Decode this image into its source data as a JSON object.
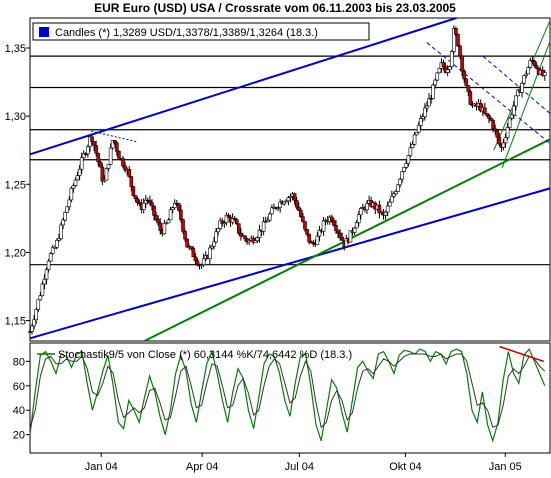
{
  "colors": {
    "background": "#ffffff",
    "frame": "#000000",
    "candle_up": "#ffffff",
    "candle_down": "#cc0000",
    "trend_blue": "#0000cc",
    "trend_green": "#008000",
    "resistance_red": "#cc0000",
    "stoch_k": "#0a7a0a",
    "stoch_d": "#333333",
    "legend_square": "#0000cc",
    "legend_line": "#008000"
  },
  "chart_data": [
    {
      "type": "candlestick",
      "title": "EUR Euro (USD) USA / Crossrate vom 06.11.2003 bis 23.03.2005",
      "legend": "Candles (*) 1,3289 USD/1,3378/1,3389/1,3264 (18.3.)",
      "y_ticks": [
        "1,15",
        "1,20",
        "1,25",
        "1,30",
        "1,35"
      ],
      "y_tick_values": [
        1.15,
        1.2,
        1.25,
        1.3,
        1.35
      ],
      "ylim": [
        1.135,
        1.372
      ],
      "x_ticks": [
        "Jan 04",
        "Apr 04",
        "Jul 04",
        "Okt 04",
        "Jan 05"
      ],
      "x_tick_positions": [
        0.137,
        0.331,
        0.518,
        0.722,
        0.914
      ],
      "horizontal_lines": [
        1.344,
        1.321,
        1.29,
        1.268,
        1.191
      ],
      "close_path": [
        [
          0.0,
          1.142
        ],
        [
          0.02,
          1.17
        ],
        [
          0.035,
          1.195
        ],
        [
          0.05,
          1.205
        ],
        [
          0.065,
          1.225
        ],
        [
          0.08,
          1.245
        ],
        [
          0.095,
          1.262
        ],
        [
          0.11,
          1.278
        ],
        [
          0.118,
          1.286
        ],
        [
          0.126,
          1.275
        ],
        [
          0.134,
          1.262
        ],
        [
          0.142,
          1.25
        ],
        [
          0.15,
          1.265
        ],
        [
          0.16,
          1.284
        ],
        [
          0.172,
          1.27
        ],
        [
          0.185,
          1.262
        ],
        [
          0.198,
          1.245
        ],
        [
          0.212,
          1.232
        ],
        [
          0.225,
          1.24
        ],
        [
          0.238,
          1.228
        ],
        [
          0.252,
          1.215
        ],
        [
          0.265,
          1.222
        ],
        [
          0.278,
          1.238
        ],
        [
          0.29,
          1.225
        ],
        [
          0.302,
          1.205
        ],
        [
          0.315,
          1.198
        ],
        [
          0.328,
          1.19
        ],
        [
          0.34,
          1.196
        ],
        [
          0.352,
          1.208
        ],
        [
          0.365,
          1.22
        ],
        [
          0.378,
          1.226
        ],
        [
          0.392,
          1.223
        ],
        [
          0.405,
          1.213
        ],
        [
          0.42,
          1.208
        ],
        [
          0.435,
          1.212
        ],
        [
          0.45,
          1.22
        ],
        [
          0.465,
          1.23
        ],
        [
          0.478,
          1.236
        ],
        [
          0.492,
          1.24
        ],
        [
          0.505,
          1.242
        ],
        [
          0.518,
          1.23
        ],
        [
          0.53,
          1.214
        ],
        [
          0.542,
          1.205
        ],
        [
          0.555,
          1.212
        ],
        [
          0.568,
          1.224
        ],
        [
          0.58,
          1.226
        ],
        [
          0.592,
          1.216
        ],
        [
          0.605,
          1.206
        ],
        [
          0.618,
          1.214
        ],
        [
          0.63,
          1.226
        ],
        [
          0.642,
          1.233
        ],
        [
          0.655,
          1.236
        ],
        [
          0.668,
          1.232
        ],
        [
          0.68,
          1.226
        ],
        [
          0.692,
          1.236
        ],
        [
          0.705,
          1.248
        ],
        [
          0.718,
          1.263
        ],
        [
          0.73,
          1.273
        ],
        [
          0.745,
          1.29
        ],
        [
          0.76,
          1.305
        ],
        [
          0.772,
          1.316
        ],
        [
          0.782,
          1.328
        ],
        [
          0.792,
          1.338
        ],
        [
          0.8,
          1.334
        ],
        [
          0.808,
          1.34
        ],
        [
          0.815,
          1.362
        ],
        [
          0.822,
          1.356
        ],
        [
          0.83,
          1.338
        ],
        [
          0.84,
          1.318
        ],
        [
          0.852,
          1.306
        ],
        [
          0.864,
          1.308
        ],
        [
          0.876,
          1.3
        ],
        [
          0.888,
          1.296
        ],
        [
          0.898,
          1.284
        ],
        [
          0.906,
          1.276
        ],
        [
          0.914,
          1.286
        ],
        [
          0.924,
          1.3
        ],
        [
          0.934,
          1.312
        ],
        [
          0.944,
          1.322
        ],
        [
          0.954,
          1.332
        ],
        [
          0.964,
          1.341
        ],
        [
          0.972,
          1.338
        ],
        [
          0.982,
          1.331
        ],
        [
          0.99,
          1.329
        ]
      ]
    },
    {
      "type": "line",
      "legend": "Stochastik9/5 von Close (*) 60,3144 %K/74,6442 %D (18.3.)",
      "y_ticks": [
        "20",
        "40",
        "60",
        "80"
      ],
      "y_tick_values": [
        20,
        40,
        60,
        80
      ],
      "ylim": [
        5,
        95
      ],
      "x_ticks": [
        "Jan 04",
        "Apr 04",
        "Jul 04",
        "Okt 04",
        "Jan 05"
      ],
      "series": [
        {
          "values_x": [
            0.0,
            0.01,
            0.02,
            0.03,
            0.04,
            0.05,
            0.06,
            0.07,
            0.08,
            0.09,
            0.1,
            0.11,
            0.12,
            0.13,
            0.14,
            0.15,
            0.16,
            0.17,
            0.18,
            0.19,
            0.2,
            0.21,
            0.22,
            0.23,
            0.24,
            0.25,
            0.26,
            0.27,
            0.28,
            0.29,
            0.3,
            0.31,
            0.32,
            0.33,
            0.34,
            0.35,
            0.36,
            0.37,
            0.38,
            0.39,
            0.4,
            0.41,
            0.42,
            0.43,
            0.44,
            0.45,
            0.46,
            0.47,
            0.48,
            0.49,
            0.5,
            0.51,
            0.52,
            0.53,
            0.54,
            0.55,
            0.56,
            0.57,
            0.58,
            0.59,
            0.6,
            0.61,
            0.62,
            0.63,
            0.64,
            0.65,
            0.66,
            0.67,
            0.68,
            0.69,
            0.7,
            0.71,
            0.72,
            0.73,
            0.74,
            0.75,
            0.76,
            0.77,
            0.78,
            0.79,
            0.8,
            0.81,
            0.82,
            0.83,
            0.84,
            0.85,
            0.86,
            0.87,
            0.88,
            0.89,
            0.9,
            0.91,
            0.92,
            0.93,
            0.94,
            0.95,
            0.96,
            0.97,
            0.98,
            0.99
          ],
          "values_y": [
            20,
            55,
            85,
            88,
            80,
            70,
            86,
            84,
            75,
            86,
            88,
            62,
            40,
            55,
            72,
            85,
            60,
            30,
            25,
            48,
            40,
            30,
            50,
            68,
            55,
            35,
            20,
            40,
            70,
            85,
            72,
            45,
            30,
            55,
            78,
            88,
            70,
            48,
            30,
            55,
            74,
            66,
            40,
            25,
            50,
            78,
            86,
            84,
            70,
            48,
            35,
            62,
            84,
            86,
            60,
            28,
            15,
            40,
            65,
            58,
            38,
            22,
            48,
            75,
            80,
            72,
            66,
            86,
            88,
            80,
            70,
            85,
            89,
            88,
            86,
            90,
            88,
            80,
            88,
            86,
            78,
            88,
            90,
            88,
            70,
            40,
            30,
            55,
            28,
            15,
            30,
            65,
            88,
            70,
            62,
            85,
            90,
            80,
            70,
            60
          ]
        },
        {
          "values_x": [
            0.0,
            0.01,
            0.02,
            0.03,
            0.04,
            0.05,
            0.06,
            0.07,
            0.08,
            0.09,
            0.1,
            0.11,
            0.12,
            0.13,
            0.14,
            0.15,
            0.16,
            0.17,
            0.18,
            0.19,
            0.2,
            0.21,
            0.22,
            0.23,
            0.24,
            0.25,
            0.26,
            0.27,
            0.28,
            0.29,
            0.3,
            0.31,
            0.32,
            0.33,
            0.34,
            0.35,
            0.36,
            0.37,
            0.38,
            0.39,
            0.4,
            0.41,
            0.42,
            0.43,
            0.44,
            0.45,
            0.46,
            0.47,
            0.48,
            0.49,
            0.5,
            0.51,
            0.52,
            0.53,
            0.54,
            0.55,
            0.56,
            0.57,
            0.58,
            0.59,
            0.6,
            0.61,
            0.62,
            0.63,
            0.64,
            0.65,
            0.66,
            0.67,
            0.68,
            0.69,
            0.7,
            0.71,
            0.72,
            0.73,
            0.74,
            0.75,
            0.76,
            0.77,
            0.78,
            0.79,
            0.8,
            0.81,
            0.82,
            0.83,
            0.84,
            0.85,
            0.86,
            0.87,
            0.88,
            0.89,
            0.9,
            0.91,
            0.92,
            0.93,
            0.94,
            0.95,
            0.96,
            0.97,
            0.98,
            0.99
          ],
          "values_y": [
            25,
            40,
            68,
            82,
            84,
            78,
            78,
            82,
            80,
            80,
            84,
            74,
            55,
            52,
            62,
            76,
            70,
            48,
            34,
            38,
            42,
            38,
            42,
            56,
            58,
            46,
            32,
            34,
            52,
            72,
            76,
            60,
            42,
            44,
            62,
            78,
            76,
            60,
            42,
            44,
            60,
            66,
            54,
            36,
            40,
            60,
            76,
            82,
            78,
            62,
            46,
            50,
            68,
            80,
            72,
            46,
            26,
            30,
            48,
            56,
            48,
            32,
            38,
            58,
            72,
            74,
            70,
            76,
            82,
            80,
            76,
            80,
            84,
            86,
            86,
            86,
            86,
            84,
            84,
            86,
            82,
            84,
            86,
            86,
            80,
            62,
            44,
            46,
            40,
            26,
            28,
            44,
            68,
            74,
            70,
            76,
            84,
            82,
            76,
            72
          ]
        }
      ]
    }
  ],
  "annotations": {
    "upper_blue_line": [
      [
        0.0,
        1.272
      ],
      [
        0.82,
        1.372
      ]
    ],
    "lower_blue_line": [
      [
        0.0,
        1.137
      ],
      [
        1.0,
        1.247
      ]
    ],
    "upper_blue_dots": [
      [
        0.118,
        1.289
      ],
      [
        0.208,
        1.281
      ]
    ],
    "green_line": [
      [
        0.22,
        1.135
      ],
      [
        1.0,
        1.283
      ]
    ],
    "green_channel_a": [
      [
        0.892,
        1.275
      ],
      [
        1.0,
        1.37
      ]
    ],
    "green_channel_b": [
      [
        0.908,
        1.262
      ],
      [
        1.0,
        1.355
      ]
    ],
    "dashed_blue_a": [
      [
        0.763,
        1.354
      ],
      [
        1.0,
        1.28
      ]
    ],
    "dashed_blue_b": [
      [
        0.871,
        1.344
      ],
      [
        1.0,
        1.302
      ]
    ],
    "stoch_red_line": [
      [
        0.903,
        92
      ],
      [
        0.988,
        80
      ]
    ]
  }
}
